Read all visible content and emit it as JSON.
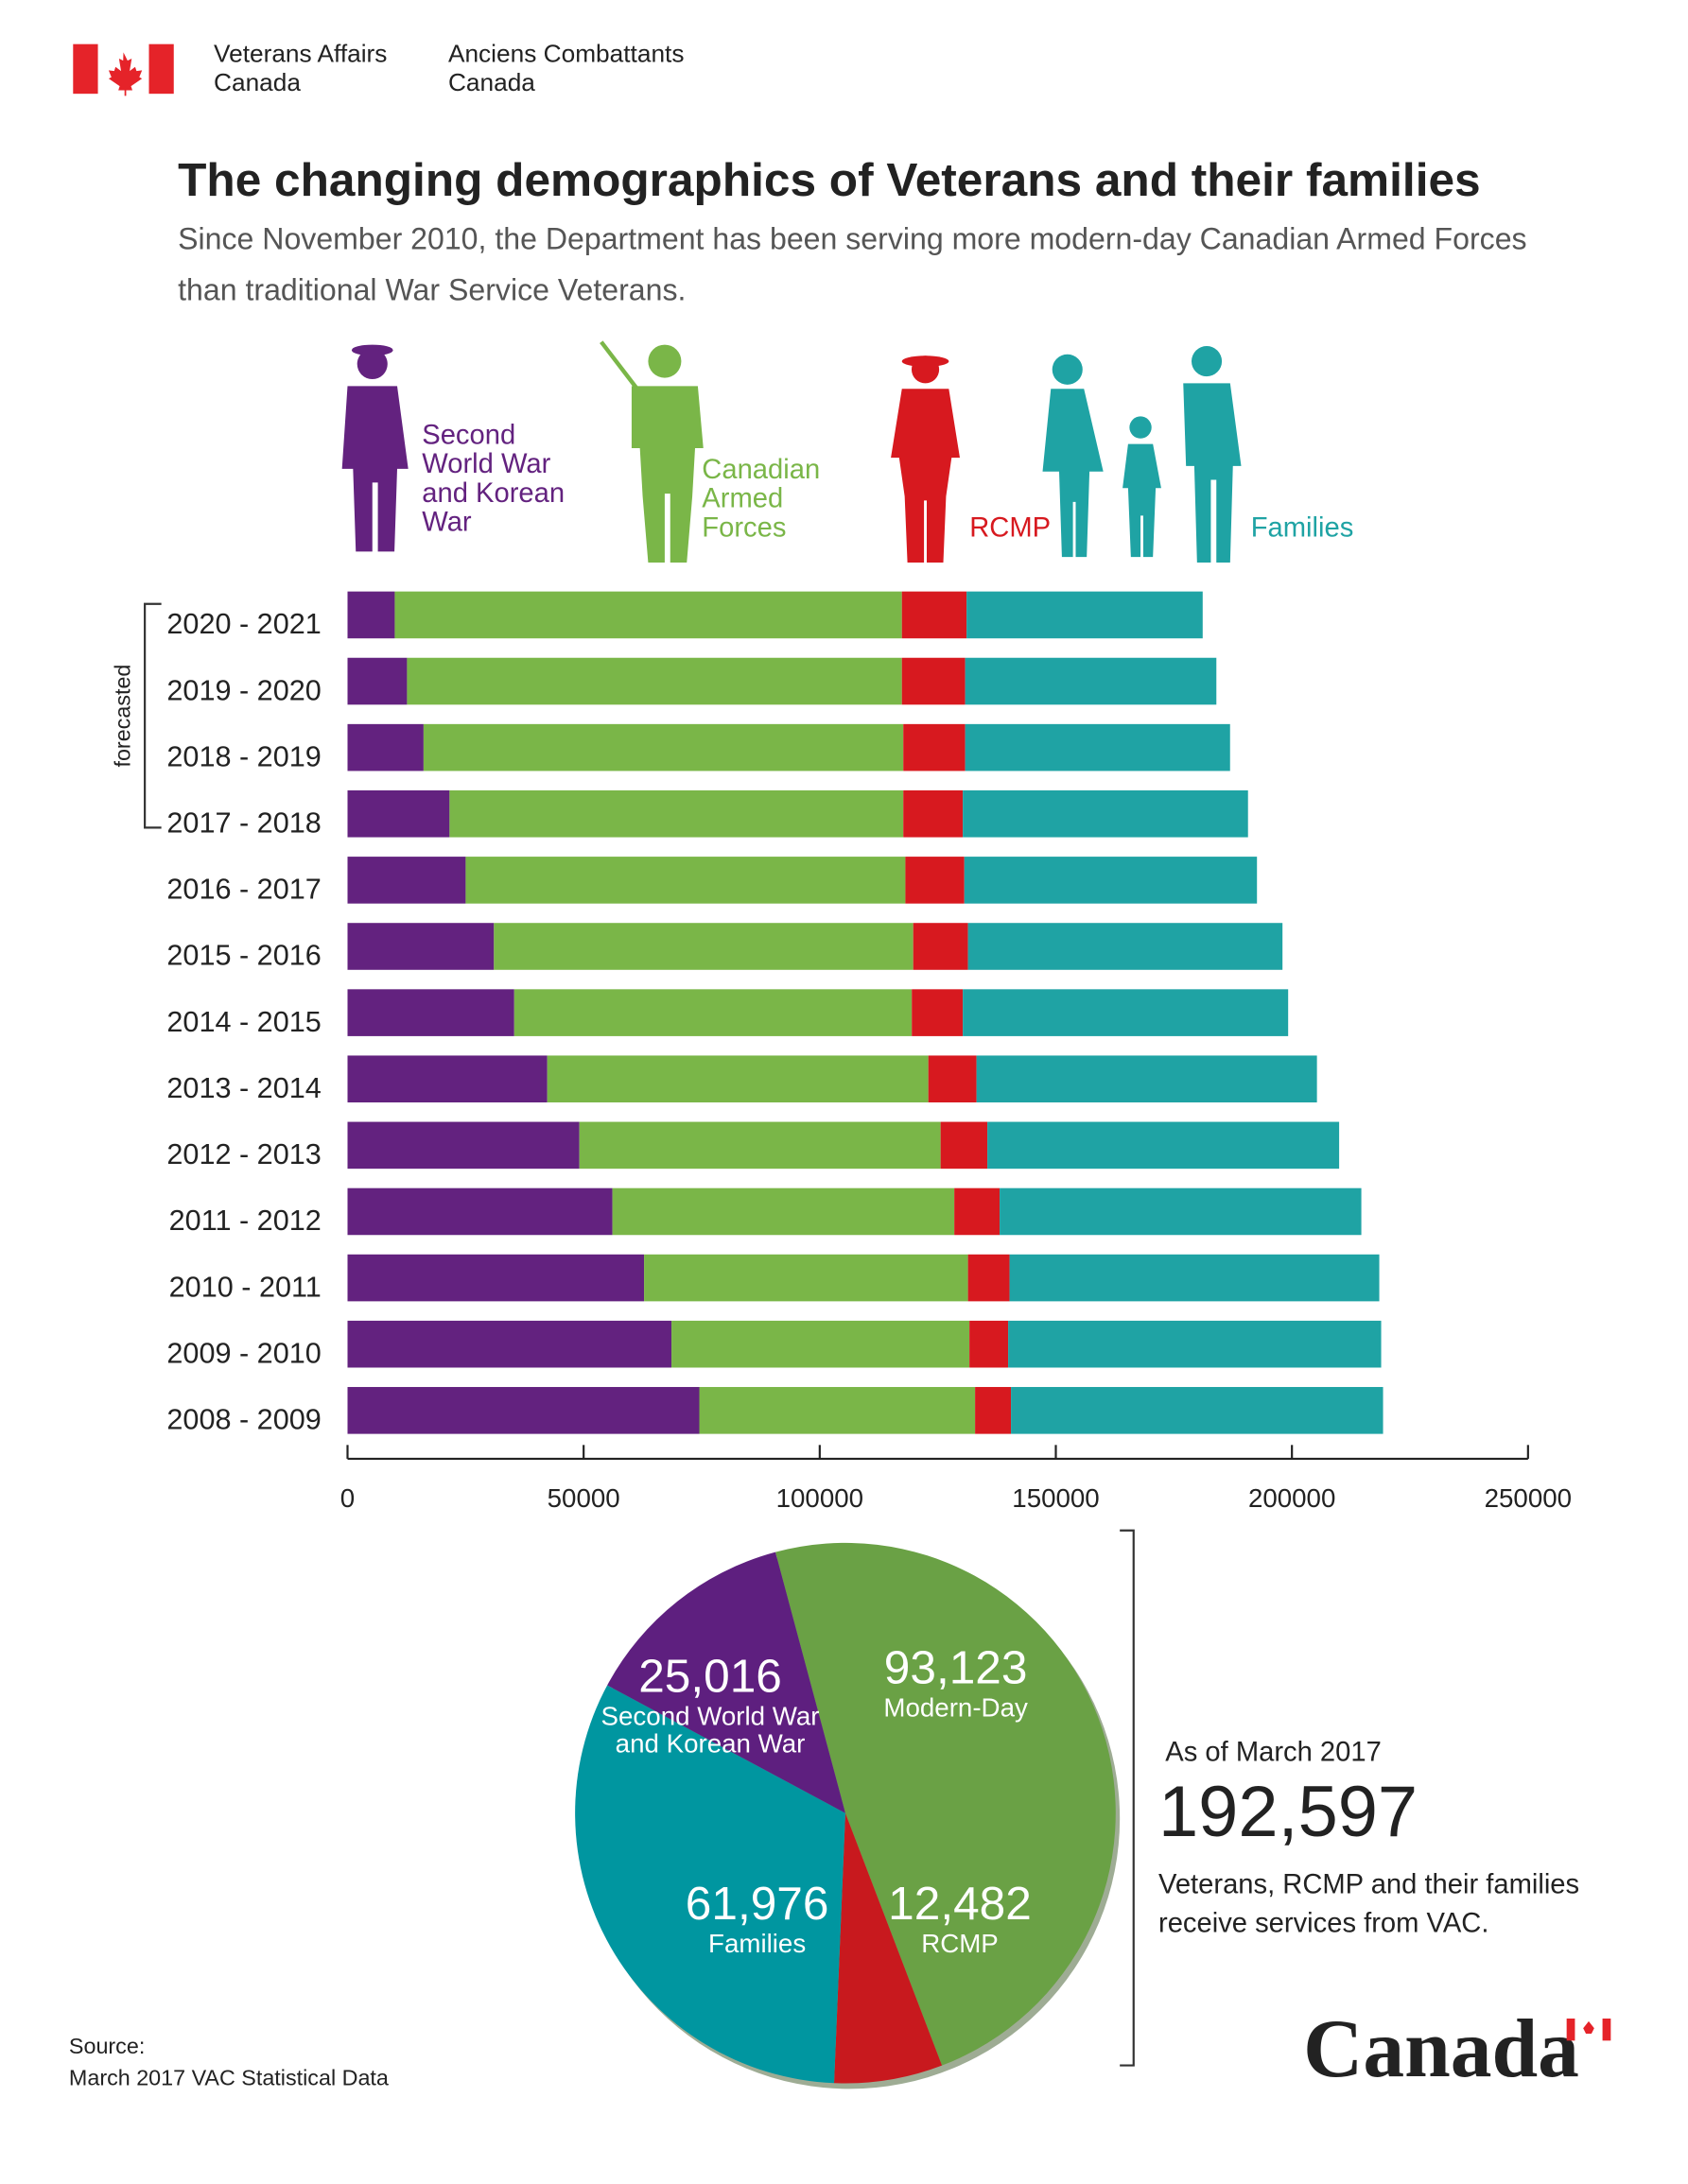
{
  "header": {
    "en": [
      "Veterans Affairs",
      "Canada"
    ],
    "fr": [
      "Anciens Combattants",
      "Canada"
    ]
  },
  "title": "The changing demographics of Veterans and their families",
  "subtitle": [
    "Since November 2010, the Department has been serving more modern-day Canadian Armed Forces",
    "than traditional War Service Veterans."
  ],
  "chart_data": [
    {
      "type": "bar",
      "orientation": "horizontal",
      "stacked": true,
      "annotation": "forecasted",
      "categories": [
        "2020 - 2021",
        "2019 - 2020",
        "2018 - 2019",
        "2017 - 2018",
        "2016 - 2017",
        "2015 - 2016",
        "2014 - 2015",
        "2013 - 2014",
        "2012 - 2013",
        "2011 - 2012",
        "2010 - 2011",
        "2009 - 2010",
        "2008 - 2009"
      ],
      "series": [
        {
          "name": "Second World War and Korean War",
          "color": "#63227f",
          "values": [
            10000,
            12600,
            16100,
            21600,
            25016,
            31000,
            35300,
            42300,
            49100,
            56100,
            62800,
            68600,
            74500
          ]
        },
        {
          "name": "Canadian Armed Forces",
          "color": "#7ab648",
          "values": [
            107400,
            104800,
            101600,
            96100,
            93123,
            88800,
            84200,
            80700,
            76500,
            72400,
            68600,
            63100,
            58400
          ]
        },
        {
          "name": "RCMP",
          "color": "#d7191f",
          "values": [
            13700,
            13400,
            13100,
            12600,
            12482,
            11600,
            10800,
            10200,
            9900,
            9600,
            8800,
            8200,
            7600
          ]
        },
        {
          "name": "Families",
          "color": "#1fa3a4",
          "values": [
            50000,
            53200,
            56100,
            60400,
            61976,
            66600,
            68900,
            72100,
            74500,
            76600,
            78300,
            79000,
            78800
          ]
        }
      ],
      "xlim": [
        0,
        250000
      ],
      "xticks": [
        0,
        50000,
        100000,
        150000,
        200000,
        250000
      ]
    },
    {
      "type": "pie",
      "categories": [
        "Modern-Day",
        "RCMP",
        "Families",
        "Second World War and Korean War"
      ],
      "values": [
        93123,
        12482,
        61976,
        25016
      ],
      "value_labels": [
        "93,123",
        "12,482",
        "61,976",
        "25,016"
      ],
      "colors": [
        "#6aa145",
        "#c8191e",
        "#0096a0",
        "#5e1f7f"
      ]
    }
  ],
  "summary": {
    "date": "As of March 2017",
    "total": "192,597",
    "text": [
      "Veterans, RCMP and their families",
      "receive services from VAC."
    ]
  },
  "source": [
    "Source:",
    "March 2017 VAC Statistical Data"
  ],
  "wordmark": "Canada"
}
